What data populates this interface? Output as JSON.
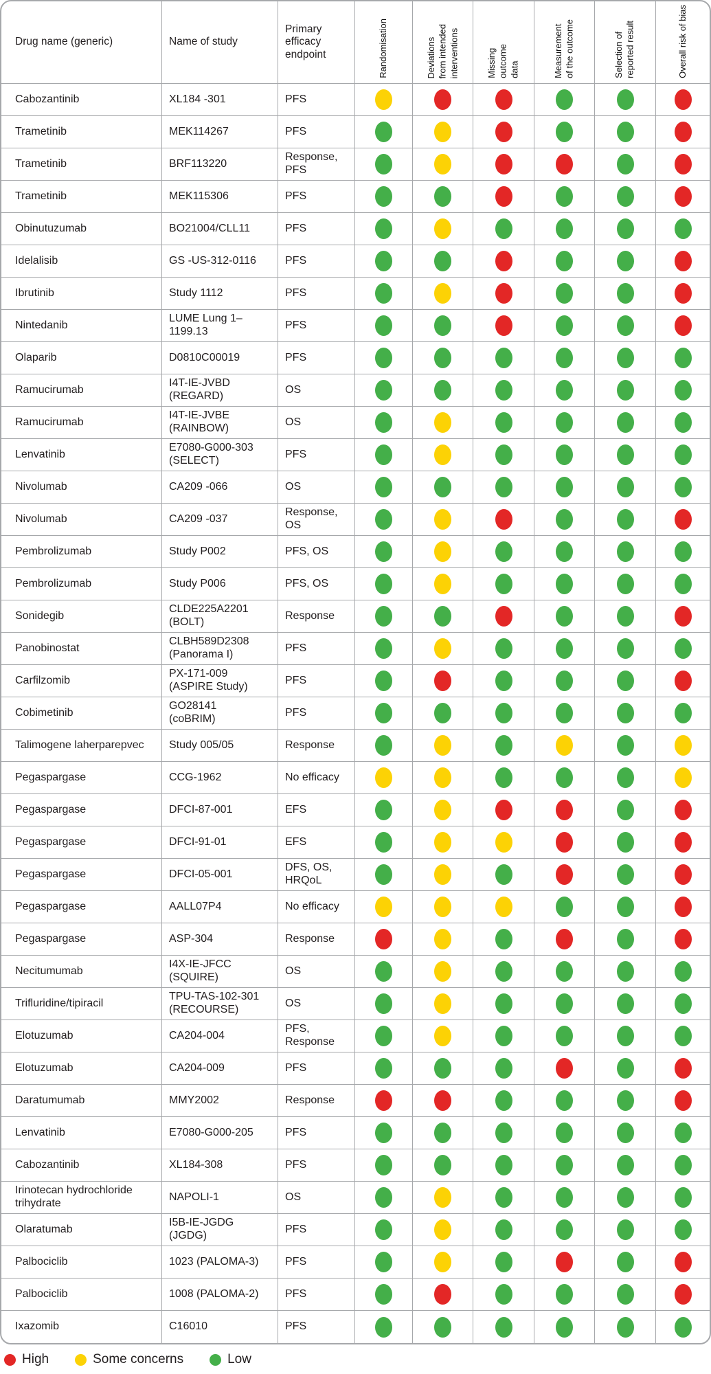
{
  "colors": {
    "high": "#e32726",
    "some": "#fcd205",
    "low": "#44af49"
  },
  "header": {
    "columns": [
      "Drug name (generic)",
      "Name of study",
      "Primary efficacy endpoint"
    ],
    "rotated_columns": [
      "Randomisation",
      "Deviations\nfrom intended\ninterventions",
      "Missing\noutcome\ndata",
      "Measurement\nof the outcome",
      "Selection of\nreported result",
      "Overall risk of bias"
    ]
  },
  "legend": {
    "items": [
      {
        "label": "High",
        "level": "high"
      },
      {
        "label": "Some concerns",
        "level": "some"
      },
      {
        "label": "Low",
        "level": "low"
      }
    ]
  },
  "rows": [
    {
      "drug": "Cabozantinib",
      "study": "XL184 -301",
      "endpoint": "PFS",
      "ratings": [
        "some",
        "high",
        "high",
        "low",
        "low",
        "high"
      ]
    },
    {
      "drug": "Trametinib",
      "study": "MEK114267",
      "endpoint": "PFS",
      "ratings": [
        "low",
        "some",
        "high",
        "low",
        "low",
        "high"
      ]
    },
    {
      "drug": "Trametinib",
      "study": "BRF113220",
      "endpoint": "Response,\nPFS",
      "ratings": [
        "low",
        "some",
        "high",
        "high",
        "low",
        "high"
      ]
    },
    {
      "drug": "Trametinib",
      "study": "MEK115306",
      "endpoint": "PFS",
      "ratings": [
        "low",
        "low",
        "high",
        "low",
        "low",
        "high"
      ]
    },
    {
      "drug": "Obinutuzumab",
      "study": "BO21004/CLL11",
      "endpoint": "PFS",
      "ratings": [
        "low",
        "some",
        "low",
        "low",
        "low",
        "low"
      ]
    },
    {
      "drug": "Idelalisib",
      "study": "GS -US-312-0116",
      "endpoint": "PFS",
      "ratings": [
        "low",
        "low",
        "high",
        "low",
        "low",
        "high"
      ]
    },
    {
      "drug": "Ibrutinib",
      "study": "Study 1112",
      "endpoint": "PFS",
      "ratings": [
        "low",
        "some",
        "high",
        "low",
        "low",
        "high"
      ]
    },
    {
      "drug": "Nintedanib",
      "study": "LUME Lung 1–\n1199.13",
      "endpoint": "PFS",
      "ratings": [
        "low",
        "low",
        "high",
        "low",
        "low",
        "high"
      ]
    },
    {
      "drug": "Olaparib",
      "study": "D0810C00019",
      "endpoint": "PFS",
      "ratings": [
        "low",
        "low",
        "low",
        "low",
        "low",
        "low"
      ]
    },
    {
      "drug": "Ramucirumab",
      "study": "I4T-IE-JVBD\n(REGARD)",
      "endpoint": "OS",
      "ratings": [
        "low",
        "low",
        "low",
        "low",
        "low",
        "low"
      ]
    },
    {
      "drug": "Ramucirumab",
      "study": "I4T-IE-JVBE\n(RAINBOW)",
      "endpoint": "OS",
      "ratings": [
        "low",
        "some",
        "low",
        "low",
        "low",
        "low"
      ]
    },
    {
      "drug": "Lenvatinib",
      "study": "E7080-G000-303\n(SELECT)",
      "endpoint": "PFS",
      "ratings": [
        "low",
        "some",
        "low",
        "low",
        "low",
        "low"
      ]
    },
    {
      "drug": "Nivolumab",
      "study": "CA209 -066",
      "endpoint": "OS",
      "ratings": [
        "low",
        "low",
        "low",
        "low",
        "low",
        "low"
      ]
    },
    {
      "drug": "Nivolumab",
      "study": "CA209 -037",
      "endpoint": "Response,\nOS",
      "ratings": [
        "low",
        "some",
        "high",
        "low",
        "low",
        "high"
      ]
    },
    {
      "drug": "Pembrolizumab",
      "study": "Study P002",
      "endpoint": "PFS, OS",
      "ratings": [
        "low",
        "some",
        "low",
        "low",
        "low",
        "low"
      ]
    },
    {
      "drug": "Pembrolizumab",
      "study": "Study P006",
      "endpoint": "PFS, OS",
      "ratings": [
        "low",
        "some",
        "low",
        "low",
        "low",
        "low"
      ]
    },
    {
      "drug": "Sonidegib",
      "study": "CLDE225A2201\n(BOLT)",
      "endpoint": "Response",
      "ratings": [
        "low",
        "low",
        "high",
        "low",
        "low",
        "high"
      ]
    },
    {
      "drug": "Panobinostat",
      "study": "CLBH589D2308\n(Panorama I)",
      "endpoint": "PFS",
      "ratings": [
        "low",
        "some",
        "low",
        "low",
        "low",
        "low"
      ]
    },
    {
      "drug": "Carfilzomib",
      "study": "PX-171-009\n(ASPIRE Study)",
      "endpoint": "PFS",
      "ratings": [
        "low",
        "high",
        "low",
        "low",
        "low",
        "high"
      ]
    },
    {
      "drug": "Cobimetinib",
      "study": "GO28141\n(coBRIM)",
      "endpoint": "PFS",
      "ratings": [
        "low",
        "low",
        "low",
        "low",
        "low",
        "low"
      ]
    },
    {
      "drug": "Talimogene laherparepvec",
      "study": "Study 005/05",
      "endpoint": "Response",
      "ratings": [
        "low",
        "some",
        "low",
        "some",
        "low",
        "some"
      ]
    },
    {
      "drug": "Pegaspargase",
      "study": "CCG-1962",
      "endpoint": "No efficacy",
      "ratings": [
        "some",
        "some",
        "low",
        "low",
        "low",
        "some"
      ]
    },
    {
      "drug": "Pegaspargase",
      "study": "DFCI-87-001",
      "endpoint": "EFS",
      "ratings": [
        "low",
        "some",
        "high",
        "high",
        "low",
        "high"
      ]
    },
    {
      "drug": "Pegaspargase",
      "study": "DFCI-91-01",
      "endpoint": "EFS",
      "ratings": [
        "low",
        "some",
        "some",
        "high",
        "low",
        "high"
      ]
    },
    {
      "drug": "Pegaspargase",
      "study": "DFCI-05-001",
      "endpoint": "DFS, OS,\nHRQoL",
      "ratings": [
        "low",
        "some",
        "low",
        "high",
        "low",
        "high"
      ]
    },
    {
      "drug": "Pegaspargase",
      "study": "AALL07P4",
      "endpoint": "No efficacy",
      "ratings": [
        "some",
        "some",
        "some",
        "low",
        "low",
        "high"
      ]
    },
    {
      "drug": "Pegaspargase",
      "study": "ASP-304",
      "endpoint": "Response",
      "ratings": [
        "high",
        "some",
        "low",
        "high",
        "low",
        "high"
      ]
    },
    {
      "drug": "Necitumumab",
      "study": "I4X-IE-JFCC\n(SQUIRE)",
      "endpoint": "OS",
      "ratings": [
        "low",
        "some",
        "low",
        "low",
        "low",
        "low"
      ]
    },
    {
      "drug": "Trifluridine/tipiracil",
      "study": "TPU-TAS-102-301\n(RECOURSE)",
      "endpoint": "OS",
      "ratings": [
        "low",
        "some",
        "low",
        "low",
        "low",
        "low"
      ]
    },
    {
      "drug": "Elotuzumab",
      "study": "CA204-004",
      "endpoint": "PFS,\nResponse",
      "ratings": [
        "low",
        "some",
        "low",
        "low",
        "low",
        "low"
      ]
    },
    {
      "drug": "Elotuzumab",
      "study": "CA204-009",
      "endpoint": "PFS",
      "ratings": [
        "low",
        "low",
        "low",
        "high",
        "low",
        "high"
      ]
    },
    {
      "drug": "Daratumumab",
      "study": "MMY2002",
      "endpoint": "Response",
      "ratings": [
        "high",
        "high",
        "low",
        "low",
        "low",
        "high"
      ]
    },
    {
      "drug": "Lenvatinib",
      "study": "E7080-G000-205",
      "endpoint": "PFS",
      "ratings": [
        "low",
        "low",
        "low",
        "low",
        "low",
        "low"
      ]
    },
    {
      "drug": "Cabozantinib",
      "study": "XL184-308",
      "endpoint": "PFS",
      "ratings": [
        "low",
        "low",
        "low",
        "low",
        "low",
        "low"
      ]
    },
    {
      "drug": "Irinotecan hydrochloride trihydrate",
      "study": "NAPOLI-1",
      "endpoint": "OS",
      "ratings": [
        "low",
        "some",
        "low",
        "low",
        "low",
        "low"
      ]
    },
    {
      "drug": "Olaratumab",
      "study": "I5B-IE-JGDG\n(JGDG)",
      "endpoint": "PFS",
      "ratings": [
        "low",
        "some",
        "low",
        "low",
        "low",
        "low"
      ]
    },
    {
      "drug": "Palbociclib",
      "study": "1023 (PALOMA-3)",
      "endpoint": "PFS",
      "ratings": [
        "low",
        "some",
        "low",
        "high",
        "low",
        "high"
      ]
    },
    {
      "drug": "Palbociclib",
      "study": "1008 (PALOMA-2)",
      "endpoint": "PFS",
      "ratings": [
        "low",
        "high",
        "low",
        "low",
        "low",
        "high"
      ]
    },
    {
      "drug": "Ixazomib",
      "study": "C16010",
      "endpoint": "PFS",
      "ratings": [
        "low",
        "low",
        "low",
        "low",
        "low",
        "low"
      ]
    }
  ]
}
